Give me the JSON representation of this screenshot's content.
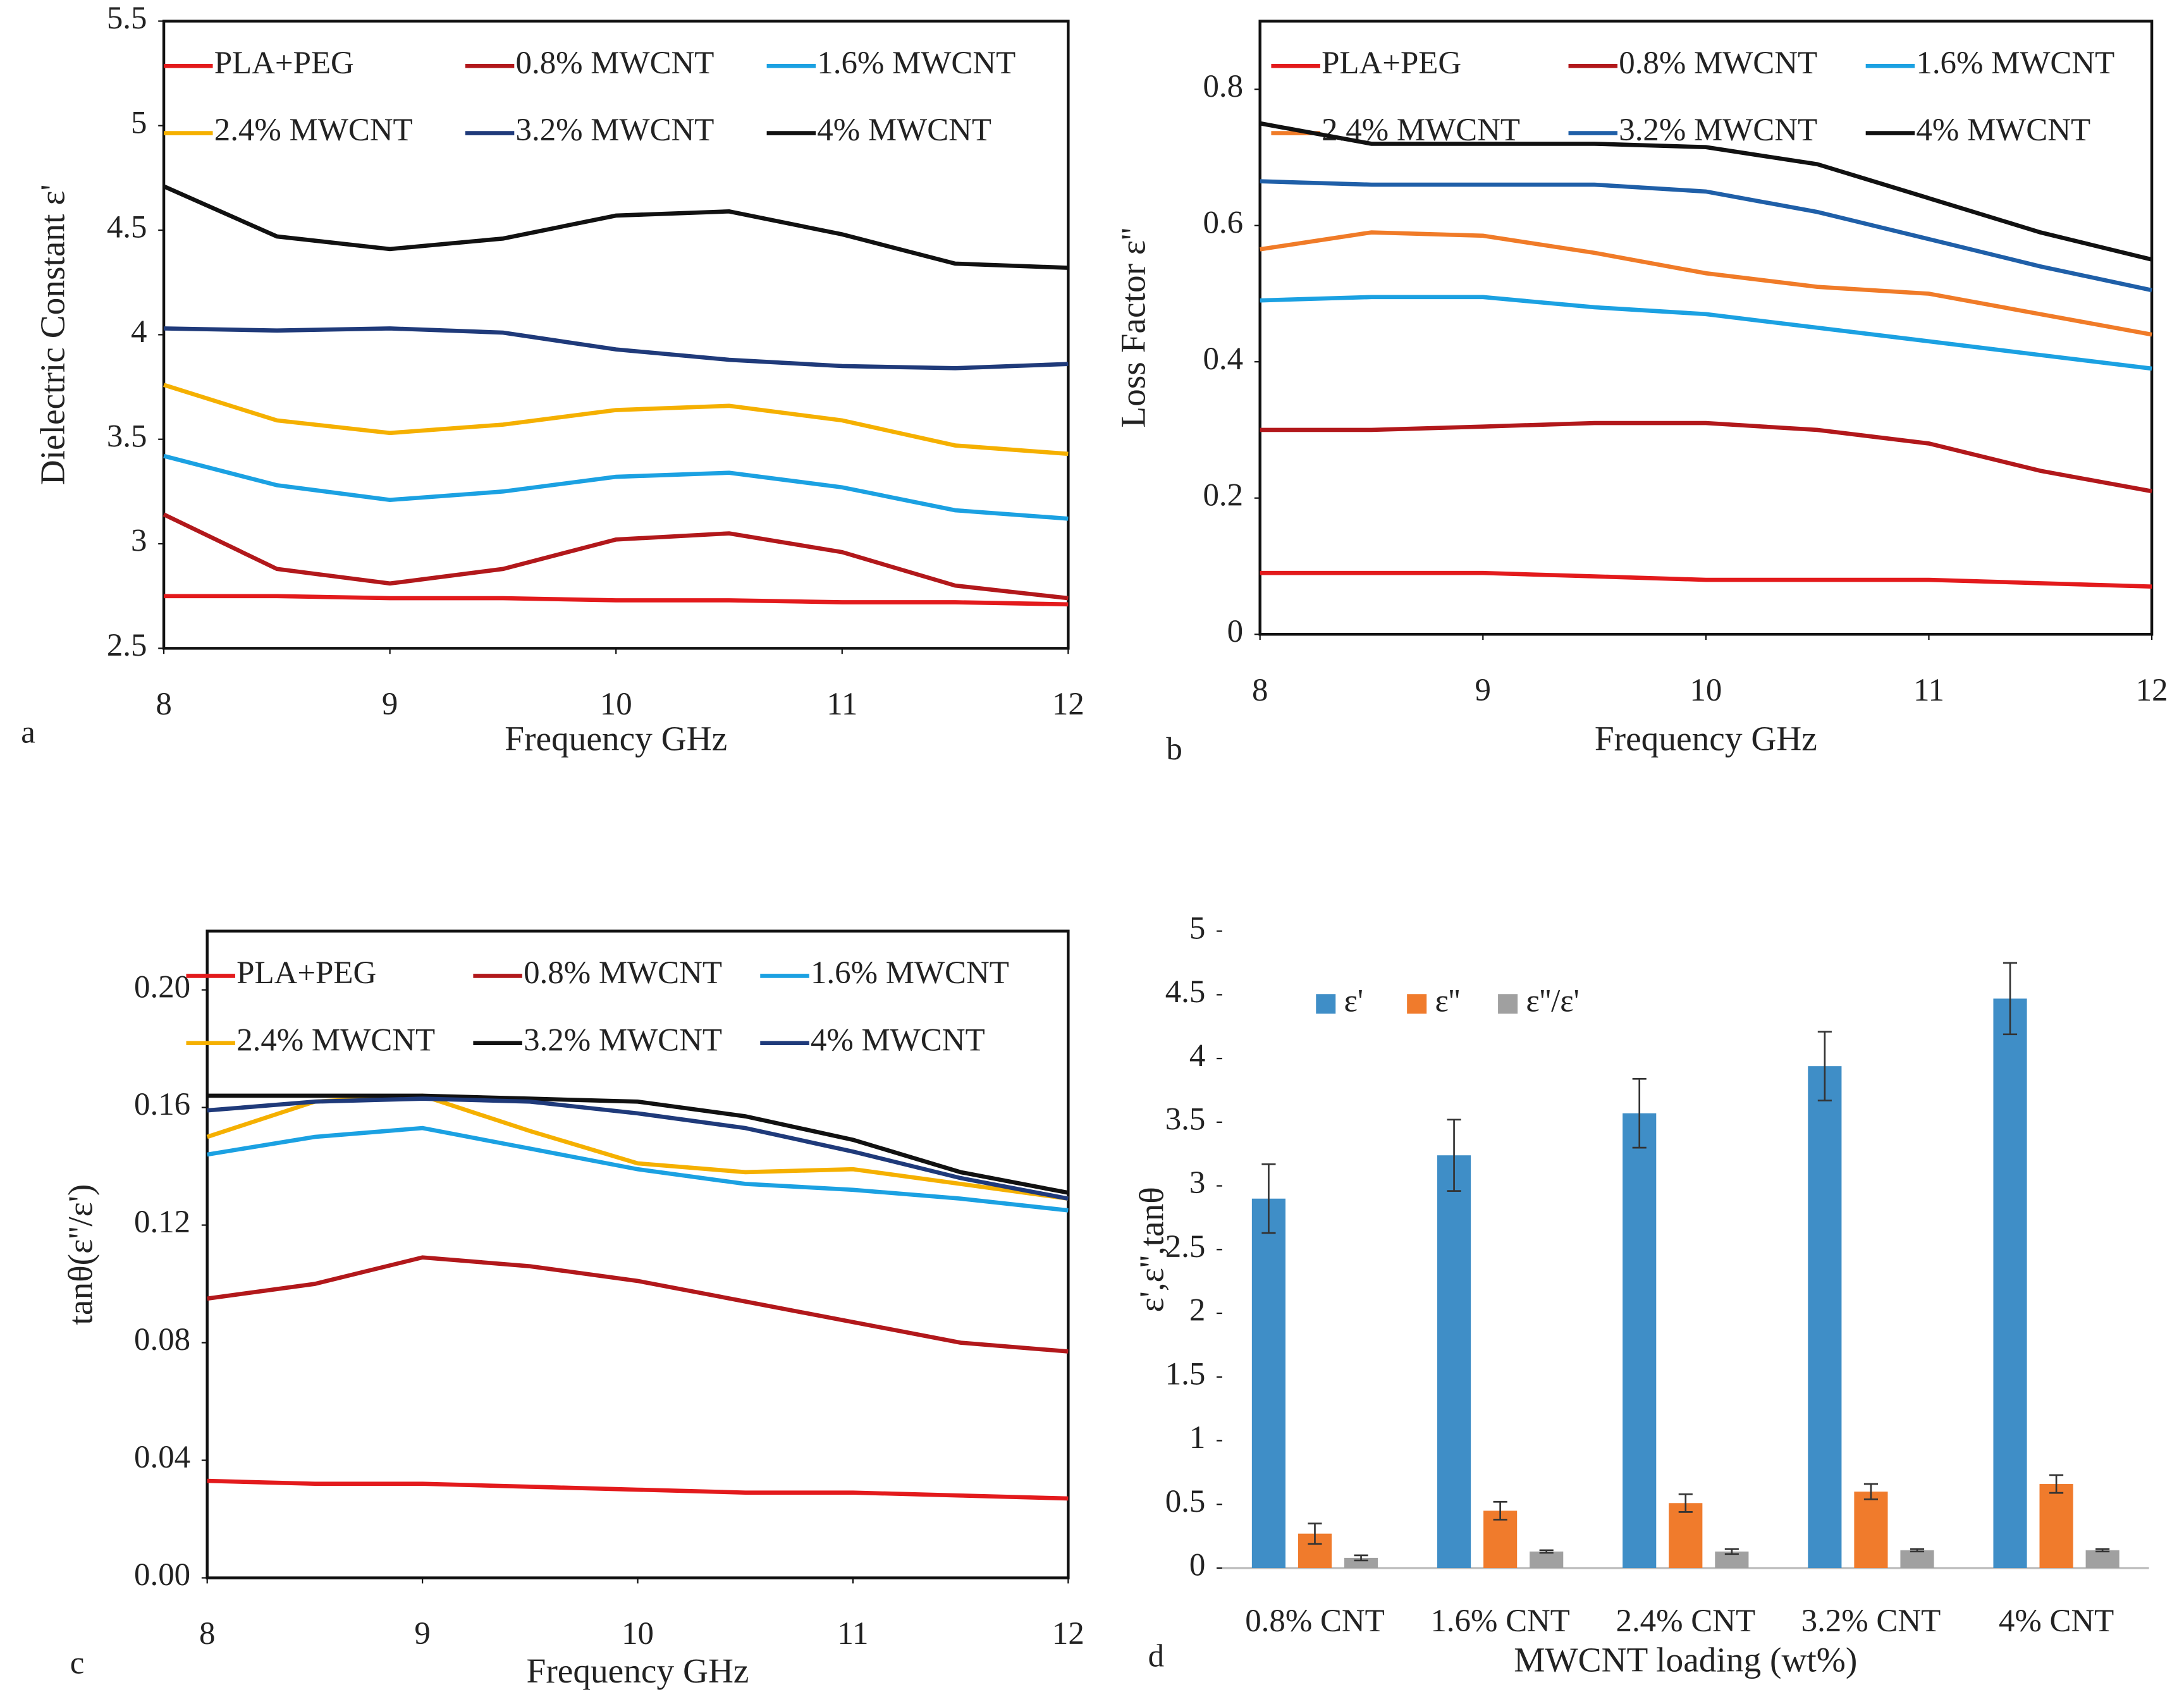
{
  "chart_data": [
    {
      "type": "line",
      "panel": "a",
      "ylabel": "Dielectric Constant ε'",
      "xlabel": "Frequency GHz",
      "x": [
        8,
        8.5,
        9,
        9.5,
        10,
        10.5,
        11,
        11.5,
        12
      ],
      "xlim": [
        8,
        12
      ],
      "xticks": [
        8,
        9,
        10,
        11,
        12
      ],
      "ylim": [
        2.5,
        5.5
      ],
      "yticks": [
        2.5,
        3,
        3.5,
        4,
        4.5,
        5,
        5.5
      ],
      "series": [
        {
          "name": "PLA+PEG",
          "color": "#e31a1c",
          "values": [
            2.75,
            2.75,
            2.74,
            2.74,
            2.73,
            2.73,
            2.72,
            2.72,
            2.71
          ]
        },
        {
          "name": "0.8% MWCNT",
          "color": "#b2181b",
          "values": [
            3.14,
            2.88,
            2.81,
            2.88,
            3.02,
            3.05,
            2.96,
            2.8,
            2.74
          ]
        },
        {
          "name": "1.6% MWCNT",
          "color": "#1ba1e2",
          "values": [
            3.42,
            3.28,
            3.21,
            3.25,
            3.32,
            3.34,
            3.27,
            3.16,
            3.12
          ]
        },
        {
          "name": "2.4% MWCNT",
          "color": "#f5b000",
          "values": [
            3.76,
            3.59,
            3.53,
            3.57,
            3.64,
            3.66,
            3.59,
            3.47,
            3.43
          ]
        },
        {
          "name": "3.2% MWCNT",
          "color": "#1f3a7a",
          "values": [
            4.03,
            4.02,
            4.03,
            4.01,
            3.93,
            3.88,
            3.85,
            3.84,
            3.86
          ]
        },
        {
          "name": "4% MWCNT",
          "color": "#111111",
          "values": [
            4.71,
            4.47,
            4.41,
            4.46,
            4.57,
            4.59,
            4.48,
            4.34,
            4.32
          ]
        }
      ]
    },
    {
      "type": "line",
      "panel": "b",
      "ylabel": "Loss Factor ε''",
      "xlabel": "Frequency GHz",
      "x": [
        8,
        8.5,
        9,
        9.5,
        10,
        10.5,
        11,
        11.5,
        12
      ],
      "xlim": [
        8,
        12
      ],
      "xticks": [
        8,
        9,
        10,
        11,
        12
      ],
      "ylim": [
        0,
        0.9
      ],
      "yticks": [
        0,
        0.2,
        0.4,
        0.6,
        0.8
      ],
      "series": [
        {
          "name": "PLA+PEG",
          "color": "#e31a1c",
          "values": [
            0.09,
            0.09,
            0.09,
            0.085,
            0.08,
            0.08,
            0.08,
            0.075,
            0.07
          ]
        },
        {
          "name": "0.8% MWCNT",
          "color": "#b2181b",
          "values": [
            0.3,
            0.3,
            0.305,
            0.31,
            0.31,
            0.3,
            0.28,
            0.24,
            0.21
          ]
        },
        {
          "name": "1.6% MWCNT",
          "color": "#1ba1e2",
          "values": [
            0.49,
            0.495,
            0.495,
            0.48,
            0.47,
            0.45,
            0.43,
            0.41,
            0.39
          ]
        },
        {
          "name": "2.4% MWCNT",
          "color": "#f07b28",
          "values": [
            0.565,
            0.59,
            0.585,
            0.56,
            0.53,
            0.51,
            0.5,
            0.47,
            0.44
          ]
        },
        {
          "name": "3.2% MWCNT",
          "color": "#1f5fa8",
          "values": [
            0.665,
            0.66,
            0.66,
            0.66,
            0.65,
            0.62,
            0.58,
            0.54,
            0.505
          ]
        },
        {
          "name": "4% MWCNT",
          "color": "#111111",
          "values": [
            0.75,
            0.72,
            0.72,
            0.72,
            0.715,
            0.69,
            0.64,
            0.59,
            0.55
          ]
        }
      ]
    },
    {
      "type": "line",
      "panel": "c",
      "ylabel": "tanθ(ε''/ε')",
      "xlabel": "Frequency GHz",
      "x": [
        8,
        8.5,
        9,
        9.5,
        10,
        10.5,
        11,
        11.5,
        12
      ],
      "xlim": [
        8,
        12
      ],
      "xticks": [
        8,
        9,
        10,
        11,
        12
      ],
      "ylim": [
        0,
        0.22
      ],
      "yticks": [
        {
          "value": 0,
          "label": "0.00"
        },
        0.04,
        0.08,
        0.12,
        0.16,
        {
          "value": 0.2,
          "label": "0.20"
        }
      ],
      "series": [
        {
          "name": "PLA+PEG",
          "color": "#e31a1c",
          "values": [
            0.033,
            0.032,
            0.032,
            0.031,
            0.03,
            0.029,
            0.029,
            0.028,
            0.027
          ]
        },
        {
          "name": "0.8% MWCNT",
          "color": "#b2181b",
          "values": [
            0.095,
            0.1,
            0.109,
            0.106,
            0.101,
            0.094,
            0.087,
            0.08,
            0.077
          ]
        },
        {
          "name": "1.6% MWCNT",
          "color": "#1ba1e2",
          "values": [
            0.144,
            0.15,
            0.153,
            0.146,
            0.139,
            0.134,
            0.132,
            0.129,
            0.125
          ]
        },
        {
          "name": "2.4% MWCNT",
          "color": "#f5b000",
          "values": [
            0.15,
            0.162,
            0.164,
            0.152,
            0.141,
            0.138,
            0.139,
            0.134,
            0.129
          ]
        },
        {
          "name": "3.2% MWCNT",
          "color": "#111111",
          "values": [
            0.164,
            0.164,
            0.164,
            0.163,
            0.162,
            0.157,
            0.149,
            0.138,
            0.131
          ]
        },
        {
          "name": "4% MWCNT",
          "color": "#1f3a7a",
          "values": [
            0.159,
            0.162,
            0.163,
            0.162,
            0.158,
            0.153,
            0.145,
            0.136,
            0.129
          ]
        }
      ]
    },
    {
      "type": "bar",
      "panel": "d",
      "ylabel": "ε',ε'',tanθ",
      "xlabel": "MWCNT loading (wt%)",
      "categories": [
        "0.8% CNT",
        "1.6% CNT",
        "2.4% CNT",
        "3.2% CNT",
        "4% CNT"
      ],
      "ylim": [
        0,
        5
      ],
      "yticks": [
        0,
        0.5,
        1,
        1.5,
        2,
        2.5,
        3,
        3.5,
        4,
        4.5,
        5
      ],
      "series": [
        {
          "name": "ε'",
          "color": "#3f8ec7",
          "values": [
            2.9,
            3.24,
            3.57,
            3.94,
            4.47
          ],
          "errors": [
            0.27,
            0.28,
            0.27,
            0.27,
            0.28
          ]
        },
        {
          "name": "ε''",
          "color": "#f07b2c",
          "values": [
            0.27,
            0.45,
            0.51,
            0.6,
            0.66
          ],
          "errors": [
            0.08,
            0.07,
            0.07,
            0.06,
            0.07
          ]
        },
        {
          "name": "ε''/ε'",
          "color": "#a0a0a0",
          "values": [
            0.08,
            0.13,
            0.13,
            0.14,
            0.14
          ],
          "errors": [
            0.02,
            0.01,
            0.02,
            0.01,
            0.01
          ]
        }
      ]
    }
  ]
}
